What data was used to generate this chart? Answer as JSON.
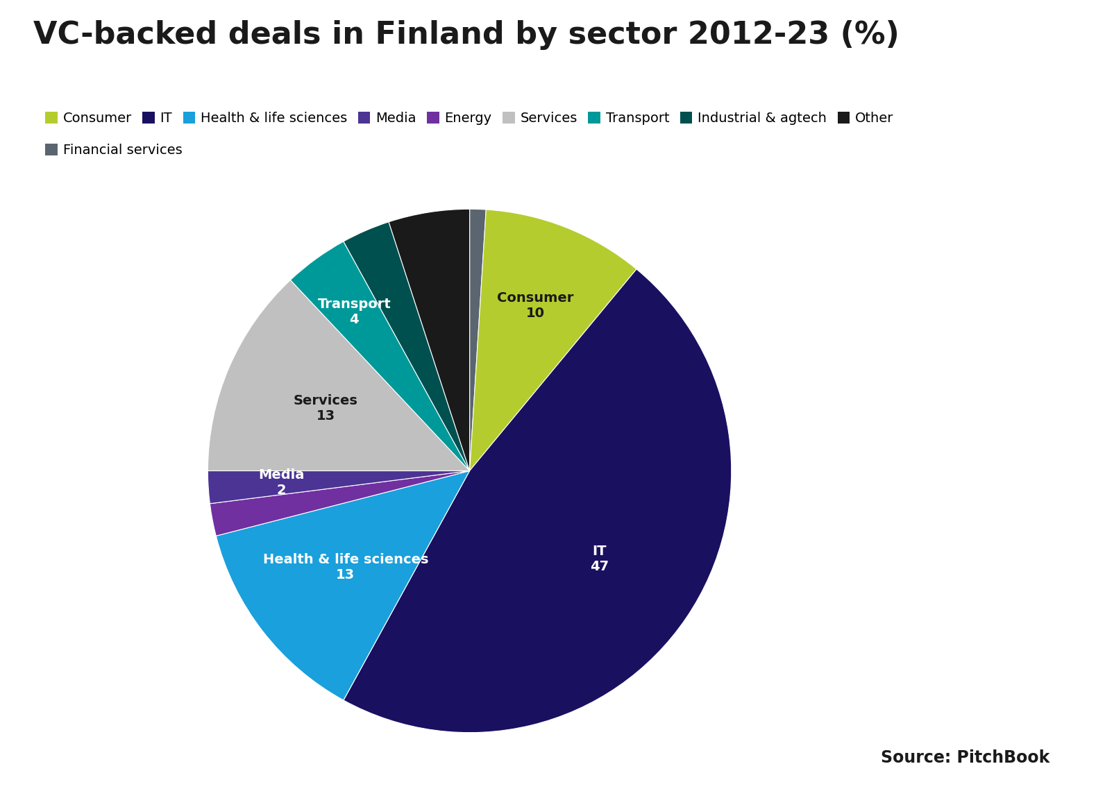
{
  "title": "VC-backed deals in Finland by sector 2012-23 (%)",
  "ordered_sectors": [
    {
      "label": "Financial services",
      "value": 1,
      "color": "#5a6570",
      "text_color": "#ffffff",
      "show_label": false
    },
    {
      "label": "Consumer",
      "value": 10,
      "color": "#b5cc2e",
      "text_color": "#1a1a1a",
      "show_label": true
    },
    {
      "label": "IT",
      "value": 47,
      "color": "#1a1060",
      "text_color": "#ffffff",
      "show_label": true
    },
    {
      "label": "Health & life sciences",
      "value": 13,
      "color": "#1aa0dc",
      "text_color": "#ffffff",
      "show_label": true
    },
    {
      "label": "Energy",
      "value": 2,
      "color": "#7030a0",
      "text_color": "#ffffff",
      "show_label": false
    },
    {
      "label": "Media",
      "value": 2,
      "color": "#4b3494",
      "text_color": "#ffffff",
      "show_label": true
    },
    {
      "label": "Services",
      "value": 13,
      "color": "#c0c0c0",
      "text_color": "#1a1a1a",
      "show_label": true
    },
    {
      "label": "Transport",
      "value": 4,
      "color": "#009999",
      "text_color": "#ffffff",
      "show_label": true
    },
    {
      "label": "Industrial & agtech",
      "value": 3,
      "color": "#005050",
      "text_color": "#ffffff",
      "show_label": false
    },
    {
      "label": "Other",
      "value": 5,
      "color": "#1a1a1a",
      "text_color": "#ffffff",
      "show_label": false
    }
  ],
  "legend_order": [
    {
      "label": "Consumer",
      "color": "#b5cc2e"
    },
    {
      "label": "IT",
      "color": "#1a1060"
    },
    {
      "label": "Health & life sciences",
      "color": "#1aa0dc"
    },
    {
      "label": "Media",
      "color": "#4b3494"
    },
    {
      "label": "Energy",
      "color": "#7030a0"
    },
    {
      "label": "Services",
      "color": "#c0c0c0"
    },
    {
      "label": "Transport",
      "color": "#009999"
    },
    {
      "label": "Industrial & agtech",
      "color": "#005050"
    },
    {
      "label": "Other",
      "color": "#1a1a1a"
    },
    {
      "label": "Financial services",
      "color": "#5a6570"
    }
  ],
  "source_text": "Source: PitchBook",
  "background_color": "#ffffff",
  "title_fontsize": 32,
  "legend_fontsize": 14,
  "label_fontsize": 14
}
